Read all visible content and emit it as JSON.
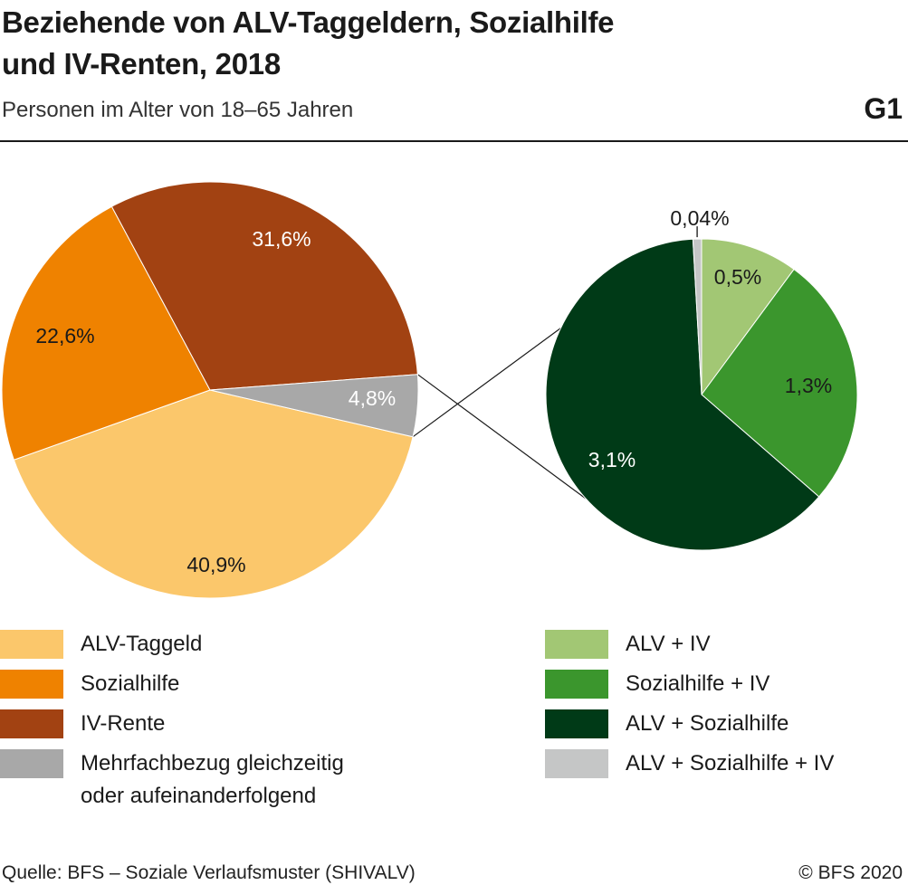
{
  "title_line1": "Beziehende von ALV-Taggeldern, Sozialhilfe",
  "title_line2": "und IV-Renten, 2018",
  "subtitle": "Personen im Alter von 18–65 Jahren",
  "code": "G1",
  "source": "Quelle: BFS – Soziale Verlaufsmuster (SHIVALV)",
  "copyright": "© BFS 2020",
  "chart_data": [
    {
      "type": "pie",
      "slices": [
        {
          "label": "ALV-Taggeld",
          "value": 40.9,
          "display": "40,9%",
          "color": "#fbc76b"
        },
        {
          "label": "Sozialhilfe",
          "value": 22.6,
          "display": "22,6%",
          "color": "#ef8200"
        },
        {
          "label": "IV-Rente",
          "value": 31.6,
          "display": "31,6%",
          "color": "#a24212"
        },
        {
          "label": "Mehrfachbezug gleichzeitig oder aufeinanderfolgend",
          "value": 4.8,
          "display": "4,8%",
          "color": "#a8a8a8"
        }
      ]
    },
    {
      "type": "pie",
      "slices": [
        {
          "label": "ALV + IV",
          "value": 0.5,
          "display": "0,5%",
          "color": "#a2c774"
        },
        {
          "label": "Sozialhilfe + IV",
          "value": 1.3,
          "display": "1,3%",
          "color": "#3b962d"
        },
        {
          "label": "ALV + Sozialhilfe",
          "value": 3.1,
          "display": "3,1%",
          "color": "#003a17"
        },
        {
          "label": "ALV + Sozialhilfe + IV",
          "value": 0.04,
          "display": "0,04%",
          "color": "#c5c6c6"
        }
      ]
    }
  ],
  "legend_left": [
    {
      "label": "ALV-Taggeld",
      "color": "#fbc76b"
    },
    {
      "label": "Sozialhilfe",
      "color": "#ef8200"
    },
    {
      "label": "IV-Rente",
      "color": "#a24212"
    },
    {
      "label_line1": "Mehrfachbezug gleichzeitig",
      "label_line2": "oder aufeinanderfolgend",
      "color": "#a8a8a8"
    }
  ],
  "legend_right": [
    {
      "label": "ALV + IV",
      "color": "#a2c774"
    },
    {
      "label": "Sozialhilfe + IV",
      "color": "#3b962d"
    },
    {
      "label": "ALV + Sozialhilfe",
      "color": "#003a17"
    },
    {
      "label": "ALV + Sozialhilfe + IV",
      "color": "#c5c6c6"
    }
  ]
}
